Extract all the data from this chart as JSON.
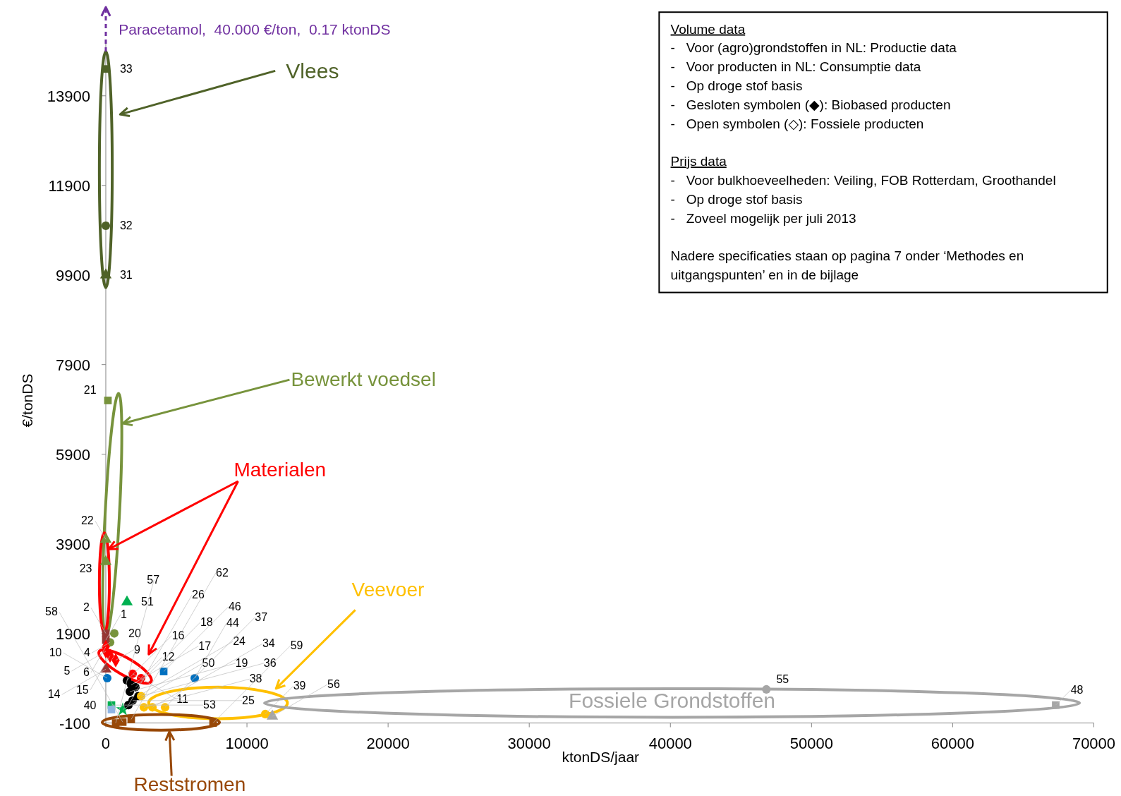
{
  "chart_data": {
    "type": "scatter",
    "xlabel": "ktonDS/jaar",
    "ylabel": "€/tonDS",
    "xlim": [
      0,
      70000
    ],
    "xticks": [
      0,
      10000,
      20000,
      30000,
      40000,
      50000,
      60000,
      70000
    ],
    "ylim": [
      -100,
      15100
    ],
    "yticks": [
      -100,
      1900,
      3900,
      5900,
      7900,
      9900,
      11900,
      13900
    ],
    "series": [
      {
        "color": "#4f6228",
        "marker": "square",
        "x": [
          0
        ],
        "values": [
          14500
        ]
      },
      {
        "color": "#4f6228",
        "marker": "circle",
        "x": [
          0
        ],
        "values": [
          11000
        ]
      },
      {
        "color": "#4f6228",
        "marker": "triangle",
        "x": [
          0
        ],
        "values": [
          9900
        ]
      },
      {
        "color": "#77933c",
        "marker": "square",
        "x": [
          150
        ],
        "values": [
          7100
        ]
      },
      {
        "color": "#77933c",
        "marker": "triangle",
        "x": [
          0,
          0
        ],
        "values": [
          4000,
          3500
        ]
      },
      {
        "color": "#77933c",
        "marker": "circle",
        "x": [
          600,
          300
        ],
        "values": [
          1900,
          1700
        ]
      },
      {
        "color": "#953735",
        "marker": "square",
        "x": [
          0,
          0
        ],
        "values": [
          1900,
          1750
        ]
      },
      {
        "color": "#953735",
        "marker": "triangle",
        "x": [
          0
        ],
        "values": [
          1100
        ]
      },
      {
        "color": "#ff0000",
        "marker": "diamond",
        "x": [
          0,
          300,
          700,
          0
        ],
        "values": [
          1600,
          1400,
          1300,
          1500
        ]
      },
      {
        "color": "#ff0000",
        "marker": "circle",
        "x": [
          2500,
          1900
        ],
        "values": [
          900,
          1000
        ]
      },
      {
        "color": "#0070c0",
        "marker": "circle",
        "x": [
          100
        ],
        "values": [
          900
        ]
      },
      {
        "color": "#00b050",
        "marker": "triangle",
        "x": [
          1500
        ],
        "values": [
          2600
        ]
      },
      {
        "color": "#00b050",
        "marker": "square",
        "x": [
          400
        ],
        "values": [
          300
        ]
      },
      {
        "color": "#00b050",
        "marker": "star",
        "x": [
          1200
        ],
        "values": [
          200
        ]
      },
      {
        "color": "#8eb4e3",
        "marker": "square",
        "x": [
          400
        ],
        "values": [
          200
        ]
      },
      {
        "color": "#000000",
        "marker": "circle",
        "x": [
          1500,
          1800,
          2100,
          1700,
          2300,
          1900,
          1600
        ],
        "values": [
          850,
          750,
          700,
          600,
          500,
          400,
          300
        ]
      },
      {
        "color": "#ffc000",
        "marker": "circle",
        "x": [
          11300,
          2500,
          2700,
          3300,
          4200
        ],
        "values": [
          100,
          500,
          250,
          250,
          250
        ]
      },
      {
        "color": "#0070c0",
        "marker": "circle",
        "x": [
          6300
        ],
        "values": [
          900
        ]
      },
      {
        "color": "#0070c0",
        "marker": "square",
        "x": [
          4100
        ],
        "values": [
          1050
        ]
      },
      {
        "color": "#a6a6a6",
        "marker": "circle",
        "x": [
          46800
        ],
        "values": [
          650
        ]
      },
      {
        "color": "#a6a6a6",
        "marker": "square",
        "x": [
          67300
        ],
        "values": [
          300
        ]
      },
      {
        "color": "#a6a6a6",
        "marker": "triangle",
        "x": [
          11800
        ],
        "values": [
          50
        ]
      },
      {
        "color": "#984807",
        "marker": "square",
        "x": [
          7600,
          1200,
          700,
          1800
        ],
        "values": [
          -100,
          -80,
          -100,
          -20
        ]
      }
    ],
    "annotations": [
      "Paracetamol,  40.000 €/ton,  0.17 ktonDS",
      "Vlees",
      "Bewerkt voedsel",
      "Materialen",
      "Veevoer",
      "Fossiele Grondstoffen",
      "Reststromen",
      "Volume data",
      "-   Voor (agro)grondstoffen in NL: Productie data",
      "-   Voor producten in NL: Consumptie data",
      "-   Op droge stof basis",
      "-   Gesloten symbolen (◆): Biobased producten",
      "-   Open symbolen (◇): Fossiele producten",
      "Prijs data",
      "-   Voor bulkhoeveelheden: Veiling, FOB Rotterdam, Groothandel",
      "-   Op droge stof basis",
      "-   Zoveel mogelijk per juli 2013",
      "Nadere specificaties staan op pagina 7 onder ‘Methodes en uitgangspunten’ en in de bijlage",
      {
        "text": "33",
        "x": 0,
        "y": 14500
      },
      {
        "text": "32",
        "x": 0,
        "y": 11000
      },
      {
        "text": "31",
        "x": 0,
        "y": 9900
      },
      {
        "text": "21",
        "x": 150,
        "y": 7100
      },
      {
        "text": "22",
        "x": 0,
        "y": 4000
      },
      {
        "text": "23",
        "x": 0,
        "y": 3500
      },
      {
        "text": "51",
        "x": 1500,
        "y": 2600
      },
      {
        "text": "20",
        "x": 600,
        "y": 1900
      },
      {
        "text": "4",
        "x": 300,
        "y": 1700
      },
      {
        "text": "2",
        "x": 0,
        "y": 1900
      },
      {
        "text": "1",
        "x": 0,
        "y": 1750
      },
      {
        "text": "6",
        "x": 0,
        "y": 1600
      },
      {
        "text": "15",
        "x": 300,
        "y": 1400
      },
      {
        "text": "9",
        "x": 700,
        "y": 1300
      },
      {
        "text": "5",
        "x": 0,
        "y": 1500
      },
      {
        "text": "14",
        "x": 0,
        "y": 1100
      },
      {
        "text": "12",
        "x": 2500,
        "y": 900
      },
      {
        "text": "11",
        "x": 1900,
        "y": 1000
      },
      {
        "text": "10",
        "x": 100,
        "y": 900
      },
      {
        "text": "53",
        "x": 400,
        "y": 300
      },
      {
        "text": "50",
        "x": 1200,
        "y": 200
      },
      {
        "text": "40",
        "x": 400,
        "y": 200
      },
      {
        "text": "16",
        "x": 1500,
        "y": 850
      },
      {
        "text": "17",
        "x": 1800,
        "y": 750
      },
      {
        "text": "18",
        "x": 2100,
        "y": 700
      },
      {
        "text": "19",
        "x": 1700,
        "y": 600
      },
      {
        "text": "24",
        "x": 2300,
        "y": 500
      },
      {
        "text": "25",
        "x": 1900,
        "y": 400
      },
      {
        "text": "26",
        "x": 1600,
        "y": 300
      },
      {
        "text": "39",
        "x": 11300,
        "y": 100
      },
      {
        "text": "36",
        "x": 2500,
        "y": 500
      },
      {
        "text": "38",
        "x": 2700,
        "y": 250
      },
      {
        "text": "34",
        "x": 3300,
        "y": 250
      },
      {
        "text": "37",
        "x": 4200,
        "y": 250
      },
      {
        "text": "44",
        "x": 6300,
        "y": 900
      },
      {
        "text": "46",
        "x": 4100,
        "y": 1050
      },
      {
        "text": "55",
        "x": 46800,
        "y": 650
      },
      {
        "text": "48",
        "x": 67300,
        "y": 300
      },
      {
        "text": "56",
        "x": 11800,
        "y": 50
      },
      {
        "text": "59",
        "x": 7600,
        "y": -100
      },
      {
        "text": "58",
        "x": 1200,
        "y": -80
      },
      {
        "text": "57",
        "x": 700,
        "y": -100
      },
      {
        "text": "62",
        "x": 1800,
        "y": -20
      }
    ]
  }
}
